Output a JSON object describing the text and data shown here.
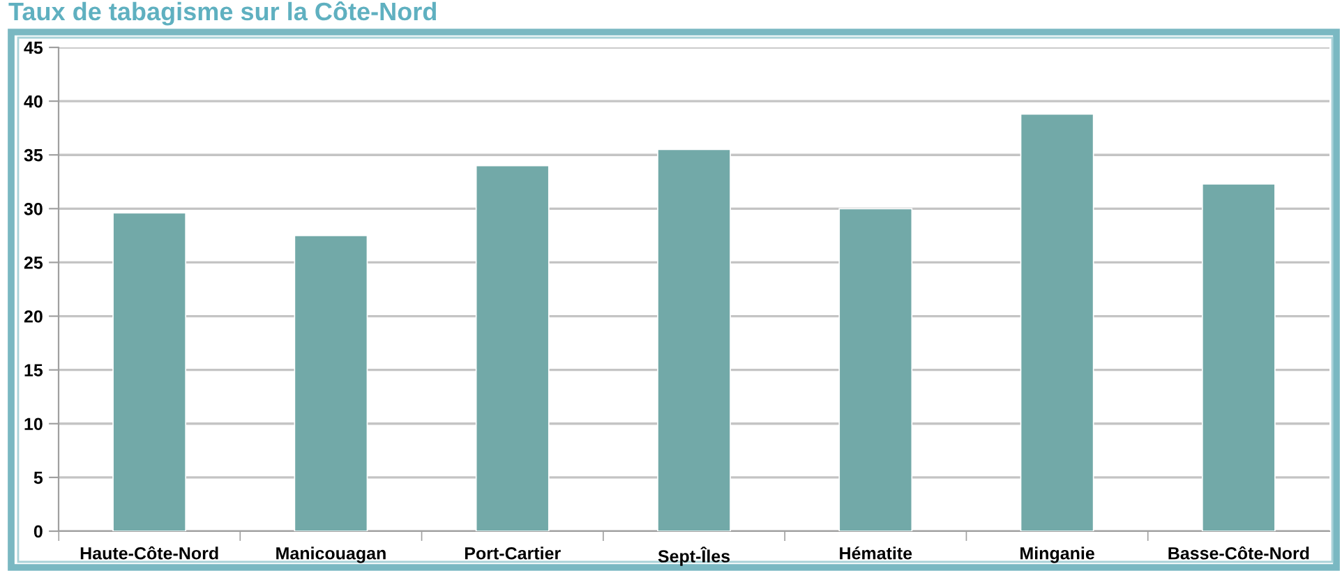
{
  "chart_data": {
    "type": "bar",
    "title": "Taux de tabagisme sur la Côte-Nord",
    "categories": [
      "Haute-Côte-Nord",
      "Manicouagan",
      "Port-Cartier",
      "Sept-Îles",
      "Hématite",
      "Minganie",
      "Basse-Côte-Nord"
    ],
    "values": [
      29.6,
      27.5,
      34.0,
      35.5,
      30.0,
      38.8,
      32.3
    ],
    "color": "#72a9a8",
    "ylim": [
      0,
      45
    ],
    "yticks": [
      0,
      5,
      10,
      15,
      20,
      25,
      30,
      35,
      40,
      45
    ],
    "grid": "y",
    "legend": false
  }
}
